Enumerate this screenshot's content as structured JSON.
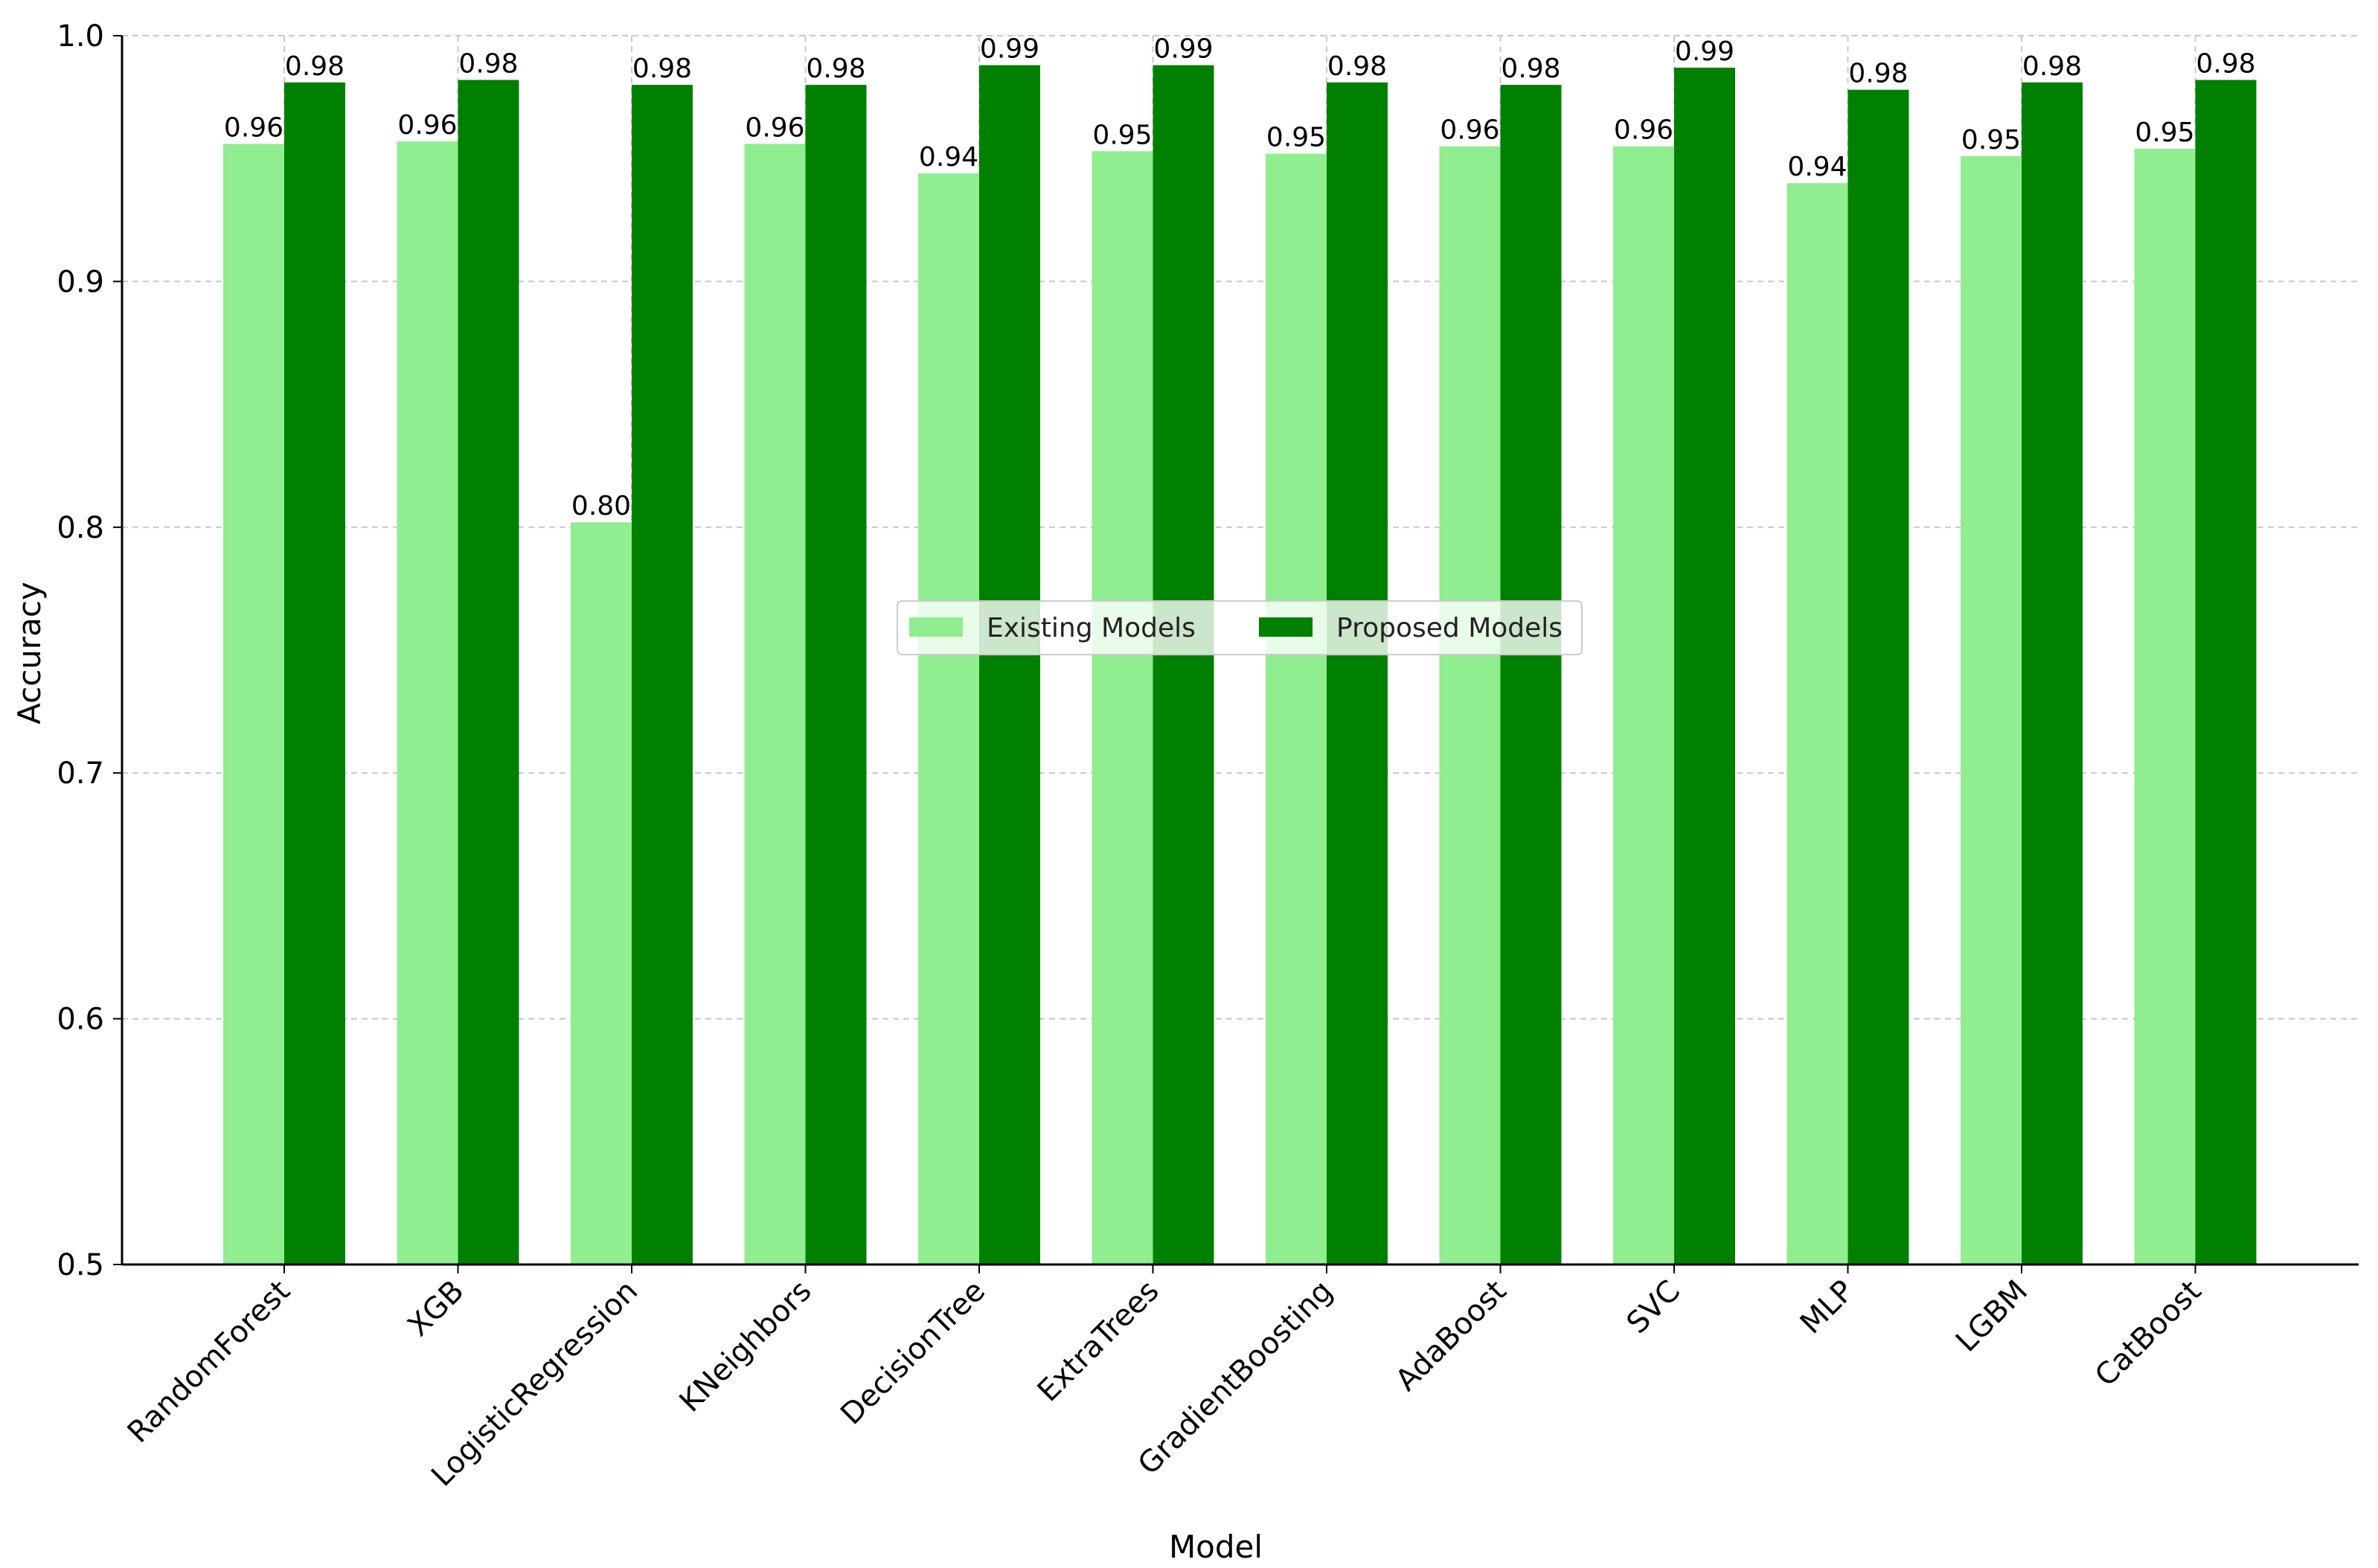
{
  "chart_data": {
    "type": "bar",
    "xlabel": "Model",
    "ylabel": "Accuracy",
    "ylim": [
      0.5,
      1.0
    ],
    "yticks": [
      0.5,
      0.6,
      0.7,
      0.8,
      0.9,
      1.0
    ],
    "ytick_labels": [
      "0.5",
      "0.6",
      "0.7",
      "0.8",
      "0.9",
      "1.0"
    ],
    "grid": true,
    "legend_position": "center",
    "categories": [
      "RandomForest",
      "XGB",
      "LogisticRegression",
      "KNeighbors",
      "DecisionTree",
      "ExtraTrees",
      "GradientBoosting",
      "AdaBoost",
      "SVC",
      "MLP",
      "LGBM",
      "CatBoost"
    ],
    "series": [
      {
        "name": "Existing Models",
        "color": "#90ee90",
        "values": [
          0.956,
          0.957,
          0.802,
          0.956,
          0.944,
          0.953,
          0.952,
          0.955,
          0.955,
          0.94,
          0.951,
          0.954
        ],
        "labels": [
          "0.96",
          "0.96",
          "0.80",
          "0.96",
          "0.94",
          "0.95",
          "0.95",
          "0.96",
          "0.96",
          "0.94",
          "0.95",
          "0.95"
        ]
      },
      {
        "name": "Proposed Models",
        "color": "#008000",
        "values": [
          0.981,
          0.982,
          0.98,
          0.98,
          0.988,
          0.988,
          0.981,
          0.98,
          0.987,
          0.978,
          0.981,
          0.982
        ],
        "labels": [
          "0.98",
          "0.98",
          "0.98",
          "0.98",
          "0.99",
          "0.99",
          "0.98",
          "0.98",
          "0.99",
          "0.98",
          "0.98",
          "0.98"
        ]
      }
    ]
  }
}
